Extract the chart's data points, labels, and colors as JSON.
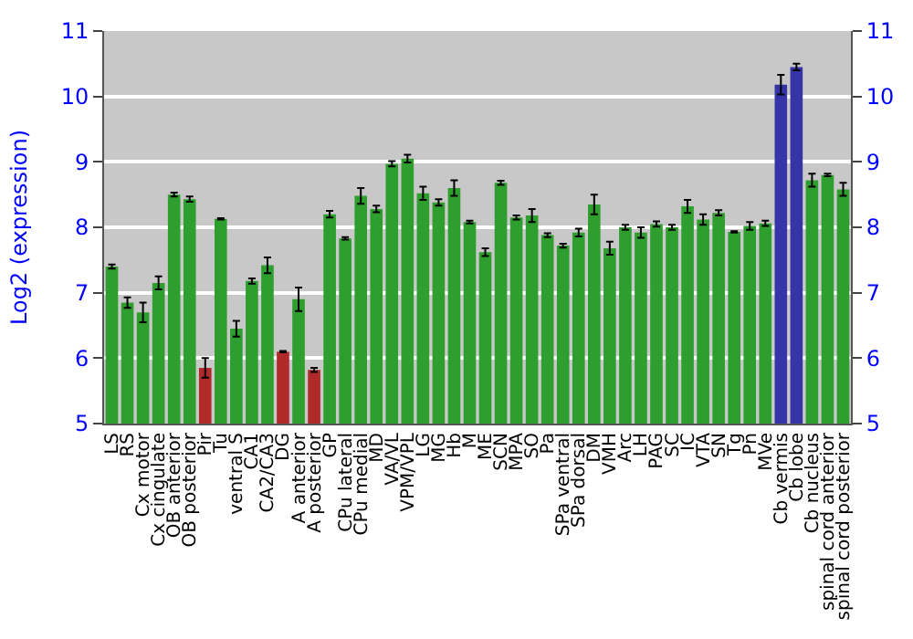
{
  "chart_data": {
    "type": "bar",
    "ylabel": "Log2 (expression)",
    "categories": [
      "LS",
      "RS",
      "Cx motor",
      "Cx cingulate",
      "OB anterior",
      "OB posterior",
      "Pir",
      "Tu",
      "ventral S",
      "CA1",
      "CA2/CA3",
      "DG",
      "A anterior",
      "A posterior",
      "GP",
      "CPu lateral",
      "CPu medial",
      "MD",
      "VA/VL",
      "VPM/VPL",
      "LG",
      "MG",
      "Hb",
      "M",
      "ME",
      "SCN",
      "MPA",
      "SO",
      "Pa",
      "SPa ventral",
      "SPa dorsal",
      "DM",
      "VMH",
      "Arc",
      "LH",
      "PAG",
      "SC",
      "IC",
      "VTA",
      "SN",
      "Tg",
      "Pn",
      "MVe",
      "Cb vermis",
      "Cb lobe",
      "Cb nucleus",
      "spinal cord anterior",
      "spinal cord posterior"
    ],
    "values": [
      7.4,
      6.85,
      6.7,
      7.15,
      8.5,
      8.43,
      5.85,
      8.13,
      6.45,
      7.18,
      7.42,
      6.1,
      6.9,
      5.82,
      8.2,
      7.83,
      8.48,
      8.28,
      8.97,
      9.05,
      8.52,
      8.38,
      8.6,
      8.08,
      7.62,
      8.68,
      8.15,
      8.18,
      7.88,
      7.72,
      7.92,
      8.35,
      7.68,
      8.0,
      7.92,
      8.05,
      8.0,
      8.32,
      8.12,
      8.22,
      7.93,
      8.02,
      8.06,
      10.18,
      10.45,
      8.72,
      8.8,
      8.58
    ],
    "errors": [
      0.03,
      0.08,
      0.15,
      0.1,
      0.03,
      0.04,
      0.15,
      0.01,
      0.12,
      0.04,
      0.12,
      0.01,
      0.18,
      0.03,
      0.05,
      0.02,
      0.12,
      0.05,
      0.04,
      0.06,
      0.1,
      0.05,
      0.12,
      0.02,
      0.06,
      0.03,
      0.03,
      0.1,
      0.03,
      0.03,
      0.06,
      0.15,
      0.1,
      0.04,
      0.08,
      0.04,
      0.04,
      0.1,
      0.08,
      0.04,
      0.01,
      0.06,
      0.04,
      0.15,
      0.05,
      0.1,
      0.02,
      0.1
    ],
    "colors": [
      "#2e9e2e",
      "#2e9e2e",
      "#2e9e2e",
      "#2e9e2e",
      "#2e9e2e",
      "#2e9e2e",
      "#b02a2a",
      "#2e9e2e",
      "#2e9e2e",
      "#2e9e2e",
      "#2e9e2e",
      "#b02a2a",
      "#2e9e2e",
      "#b02a2a",
      "#2e9e2e",
      "#2e9e2e",
      "#2e9e2e",
      "#2e9e2e",
      "#2e9e2e",
      "#2e9e2e",
      "#2e9e2e",
      "#2e9e2e",
      "#2e9e2e",
      "#2e9e2e",
      "#2e9e2e",
      "#2e9e2e",
      "#2e9e2e",
      "#2e9e2e",
      "#2e9e2e",
      "#2e9e2e",
      "#2e9e2e",
      "#2e9e2e",
      "#2e9e2e",
      "#2e9e2e",
      "#2e9e2e",
      "#2e9e2e",
      "#2e9e2e",
      "#2e9e2e",
      "#2e9e2e",
      "#2e9e2e",
      "#2e9e2e",
      "#2e9e2e",
      "#2e9e2e",
      "#3535a8",
      "#3535a8",
      "#2e9e2e",
      "#2e9e2e",
      "#2e9e2e"
    ],
    "ylim": [
      5,
      11
    ],
    "yticks": [
      5,
      6,
      7,
      8,
      9,
      10,
      11
    ],
    "y2lim": [
      5,
      11
    ],
    "y2ticks": [
      5,
      6,
      7,
      8,
      9,
      10,
      11
    ],
    "grid": "y"
  }
}
